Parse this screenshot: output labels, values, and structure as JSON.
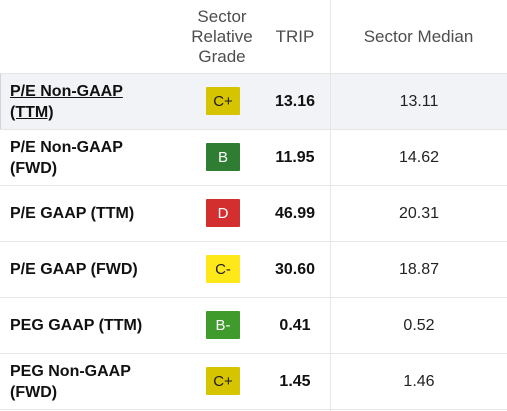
{
  "header": {
    "grade": "Sector\nRelative\nGrade",
    "trip": "TRIP",
    "median": "Sector Median"
  },
  "grade_colors": {
    "C+": {
      "bg": "#d7c400",
      "fg": "#1b1b1b"
    },
    "B": {
      "bg": "#2e7d32",
      "fg": "#ffffff"
    },
    "D": {
      "bg": "#d32f2f",
      "fg": "#ffffff"
    },
    "C-": {
      "bg": "#ffe81a",
      "fg": "#1b1b1b"
    },
    "B-": {
      "bg": "#3f9b2c",
      "fg": "#ffffff"
    }
  },
  "rows": [
    {
      "metric": "P/E Non-GAAP\n(TTM)",
      "grade": "C+",
      "trip": "13.16",
      "median": "13.11",
      "link": true,
      "highlight": true
    },
    {
      "metric": "P/E Non-GAAP\n(FWD)",
      "grade": "B",
      "trip": "11.95",
      "median": "14.62"
    },
    {
      "metric": "P/E GAAP (TTM)",
      "grade": "D",
      "trip": "46.99",
      "median": "20.31"
    },
    {
      "metric": "P/E GAAP (FWD)",
      "grade": "C-",
      "trip": "30.60",
      "median": "18.87"
    },
    {
      "metric": "PEG GAAP (TTM)",
      "grade": "B-",
      "trip": "0.41",
      "median": "0.52"
    },
    {
      "metric": "PEG Non-GAAP\n(FWD)",
      "grade": "C+",
      "trip": "1.45",
      "median": "1.46"
    }
  ]
}
